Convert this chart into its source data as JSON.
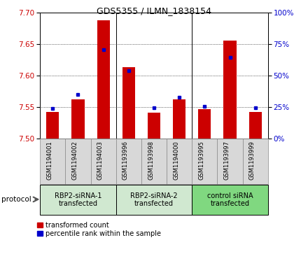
{
  "title": "GDS5355 / ILMN_1838154",
  "categories": [
    "GSM1194001",
    "GSM1194002",
    "GSM1194003",
    "GSM1193996",
    "GSM1193998",
    "GSM1194000",
    "GSM1193995",
    "GSM1193997",
    "GSM1193999"
  ],
  "red_values": [
    7.542,
    7.562,
    7.688,
    7.613,
    7.541,
    7.562,
    7.547,
    7.656,
    7.542
  ],
  "blue_values": [
    7.548,
    7.57,
    7.641,
    7.608,
    7.549,
    7.566,
    7.551,
    7.629,
    7.549
  ],
  "ylim": [
    7.5,
    7.7
  ],
  "yticks": [
    7.5,
    7.55,
    7.6,
    7.65,
    7.7
  ],
  "right_yticks": [
    0,
    25,
    50,
    75,
    100
  ],
  "right_ylim": [
    0,
    100
  ],
  "groups": [
    {
      "label": "RBP2-siRNA-1\ntransfected",
      "indices": [
        0,
        1,
        2
      ]
    },
    {
      "label": "RBP2-siRNA-2\ntransfected",
      "indices": [
        3,
        4,
        5
      ]
    },
    {
      "label": "control siRNA\ntransfected",
      "indices": [
        6,
        7,
        8
      ]
    }
  ],
  "bar_color": "#cc0000",
  "blue_color": "#0000cc",
  "bar_width": 0.5,
  "base_value": 7.5,
  "legend_items": [
    {
      "color": "#cc0000",
      "label": "transformed count"
    },
    {
      "color": "#0000cc",
      "label": "percentile rank within the sample"
    }
  ],
  "protocol_label": "protocol",
  "group_colors": [
    "#d0e8d0",
    "#d0e8d0",
    "#80d880"
  ],
  "tick_bg_color": "#d8d8d8",
  "separator_color": "#888888"
}
